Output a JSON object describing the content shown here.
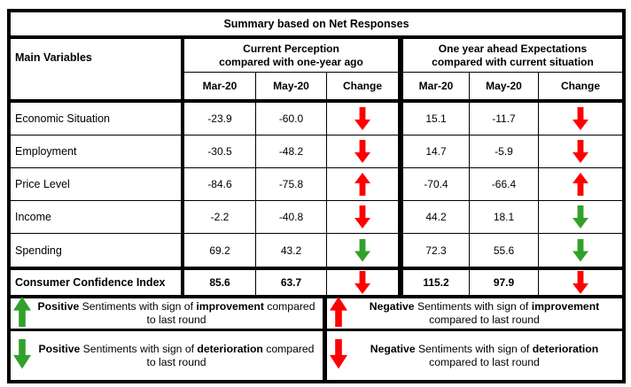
{
  "title": "Summary based on Net Responses",
  "colors": {
    "arrow_red": "#ff0000",
    "arrow_green": "#33a02c",
    "border": "#000000"
  },
  "header": {
    "main_col": "Main Variables",
    "groups": [
      {
        "line1": "Current Perception",
        "line2": "compared with one-year ago",
        "cols": [
          "Mar-20",
          "May-20",
          "Change"
        ]
      },
      {
        "line1": "One year ahead Expectations",
        "line2": "compared with current situation",
        "cols": [
          "Mar-20",
          "May-20",
          "Change"
        ]
      }
    ]
  },
  "rows": [
    {
      "label": "Economic Situation",
      "cp_mar": "-23.9",
      "cp_may": "-60.0",
      "cp_change": "red down",
      "ex_mar": "15.1",
      "ex_may": "-11.7",
      "ex_change": "red down"
    },
    {
      "label": "Employment",
      "cp_mar": "-30.5",
      "cp_may": "-48.2",
      "cp_change": "red down",
      "ex_mar": "14.7",
      "ex_may": "-5.9",
      "ex_change": "red down"
    },
    {
      "label": "Price Level",
      "cp_mar": "-84.6",
      "cp_may": "-75.8",
      "cp_change": "red up",
      "ex_mar": "-70.4",
      "ex_may": "-66.4",
      "ex_change": "red up"
    },
    {
      "label": "Income",
      "cp_mar": "-2.2",
      "cp_may": "-40.8",
      "cp_change": "red down",
      "ex_mar": "44.2",
      "ex_may": "18.1",
      "ex_change": "green down"
    },
    {
      "label": "Spending",
      "cp_mar": "69.2",
      "cp_may": "43.2",
      "cp_change": "green down",
      "ex_mar": "72.3",
      "ex_may": "55.6",
      "ex_change": "green down"
    }
  ],
  "summary_row": {
    "label": "Consumer Confidence Index",
    "cp_mar": "85.6",
    "cp_may": "63.7",
    "cp_change": "red down",
    "ex_mar": "115.2",
    "ex_may": "97.9",
    "ex_change": "red down"
  },
  "legend": {
    "rows": [
      {
        "left": {
          "arrow": "green up",
          "b1": "Positive",
          "t1": " Sentiments with sign of ",
          "b2": "improvement",
          "t2": " compared to last round"
        },
        "right": {
          "arrow": "red up",
          "b1": "Negative",
          "t1": " Sentiments with sign of ",
          "b2": "improvement",
          "t2": " compared to last round"
        }
      },
      {
        "left": {
          "arrow": "green down",
          "b1": "Positive",
          "t1": " Sentiments with sign of ",
          "b2": "deterioration",
          "t2": " compared to last round"
        },
        "right": {
          "arrow": "red down",
          "b1": "Negative",
          "t1": " Sentiments with sign of ",
          "b2": "deterioration",
          "t2": " compared to last round"
        }
      }
    ]
  }
}
